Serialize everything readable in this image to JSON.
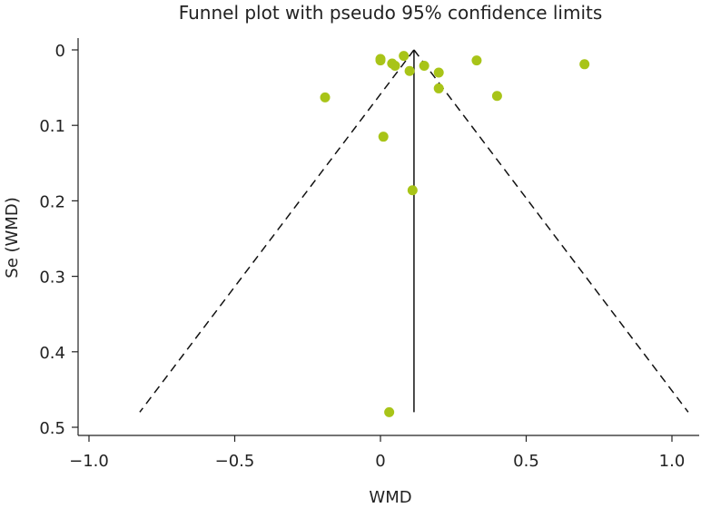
{
  "chart_data": {
    "type": "scatter",
    "title": "Funnel plot with pseudo 95% confidence limits",
    "xlabel": "WMD",
    "ylabel": "Se (WMD)",
    "xlim": [
      -1.05,
      1.1
    ],
    "ylim": [
      0,
      0.5
    ],
    "y_inverted": true,
    "x_ticks": [
      -1.0,
      -0.5,
      0,
      0.5,
      1.0
    ],
    "x_tick_labels": [
      "−1.0",
      "−0.5",
      "0",
      "0.5",
      "1.0"
    ],
    "y_ticks": [
      0,
      0.1,
      0.2,
      0.3,
      0.4,
      0.5
    ],
    "y_tick_labels": [
      "0",
      "0.1",
      "0.2",
      "0.3",
      "0.4",
      "0.5"
    ],
    "pooled_estimate": 0.115,
    "se_max": 0.48,
    "ci_multiplier": 1.96,
    "colors": {
      "points": "#a8c418",
      "lines": "#111111"
    },
    "points": [
      {
        "x": 0.08,
        "y": 0.008
      },
      {
        "x": 0.0,
        "y": 0.012
      },
      {
        "x": 0.0,
        "y": 0.014
      },
      {
        "x": 0.04,
        "y": 0.018
      },
      {
        "x": 0.05,
        "y": 0.021
      },
      {
        "x": 0.15,
        "y": 0.021
      },
      {
        "x": 0.1,
        "y": 0.028
      },
      {
        "x": 0.2,
        "y": 0.03
      },
      {
        "x": 0.33,
        "y": 0.014
      },
      {
        "x": 0.7,
        "y": 0.019
      },
      {
        "x": 0.2,
        "y": 0.051
      },
      {
        "x": -0.19,
        "y": 0.063
      },
      {
        "x": 0.4,
        "y": 0.061
      },
      {
        "x": 0.01,
        "y": 0.115
      },
      {
        "x": 0.11,
        "y": 0.186
      },
      {
        "x": 0.03,
        "y": 0.48
      }
    ]
  }
}
